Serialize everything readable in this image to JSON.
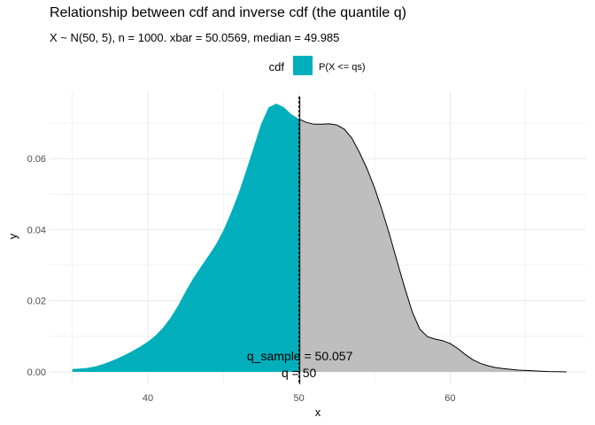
{
  "chart_data": {
    "type": "area",
    "title": "Relationship between cdf and inverse cdf (the quantile q)",
    "subtitle": "X ~ N(50, 5), n = 1000. xbar = 50.0569, median = 49.985",
    "xlabel": "x",
    "ylabel": "y",
    "xlim": [
      33.5,
      69
    ],
    "ylim": [
      -0.0035,
      0.079
    ],
    "x_ticks": [
      40,
      50,
      60
    ],
    "y_ticks": [
      0.0,
      0.02,
      0.04,
      0.06
    ],
    "x_tick_labels": [
      "40",
      "50",
      "60"
    ],
    "y_tick_labels": [
      "0.00",
      "0.02",
      "0.04",
      "0.06"
    ],
    "grid": true,
    "legend": {
      "title": "cdf",
      "placement": "top",
      "entries": [
        {
          "label": "P(X <= qs)",
          "color": "#00AFBB"
        }
      ]
    },
    "colors": {
      "lower_fill": "#00AFBB",
      "upper_fill": "#BEBEBE",
      "outline": "#000000",
      "grid": "#EBEBEB"
    },
    "split_at": 50.057,
    "reference_line_x": 50,
    "series": [
      {
        "x": [
          35.0,
          35.5,
          36.0,
          36.5,
          37.0,
          37.5,
          38.0,
          38.5,
          39.0,
          39.5,
          40.0,
          40.5,
          41.0,
          41.5,
          42.0,
          42.5,
          43.0,
          43.5,
          44.0,
          44.5,
          45.0,
          45.5,
          46.0,
          46.5,
          47.0,
          47.5,
          48.0,
          48.5,
          49.0,
          49.5,
          50.0,
          50.5,
          51.0,
          51.5,
          52.0,
          52.5,
          53.0,
          53.5,
          54.0,
          54.5,
          55.0,
          55.5,
          56.0,
          56.5,
          57.0,
          57.5,
          58.0,
          58.5,
          59.0,
          59.5,
          60.0,
          60.5,
          61.0,
          61.5,
          62.0,
          62.5,
          63.0,
          63.5,
          64.0,
          64.5,
          65.0,
          65.5,
          66.0,
          66.5,
          67.0,
          67.7
        ],
        "y": [
          0.0008,
          0.0009,
          0.0011,
          0.0015,
          0.0021,
          0.0029,
          0.0038,
          0.0048,
          0.0059,
          0.0071,
          0.0085,
          0.0102,
          0.0124,
          0.0152,
          0.0186,
          0.0226,
          0.0263,
          0.0295,
          0.0326,
          0.0358,
          0.0398,
          0.0447,
          0.0502,
          0.0565,
          0.0632,
          0.0698,
          0.0745,
          0.0755,
          0.0745,
          0.0725,
          0.0712,
          0.0702,
          0.0697,
          0.0697,
          0.0698,
          0.0695,
          0.0683,
          0.0658,
          0.0618,
          0.0572,
          0.0518,
          0.0455,
          0.0385,
          0.031,
          0.0236,
          0.0168,
          0.012,
          0.0099,
          0.0092,
          0.0088,
          0.008,
          0.0066,
          0.0049,
          0.0034,
          0.0024,
          0.0017,
          0.0012,
          0.0009,
          0.0007,
          0.0005,
          0.0004,
          0.0003,
          0.0002,
          0.0001,
          5e-05,
          0.0
        ]
      }
    ],
    "annotations": [
      {
        "text": "q_sample = 50.057",
        "x": 50.057,
        "y": 0.0045
      },
      {
        "text": "q = 50",
        "x": 50,
        "y": -0.0002
      }
    ]
  }
}
